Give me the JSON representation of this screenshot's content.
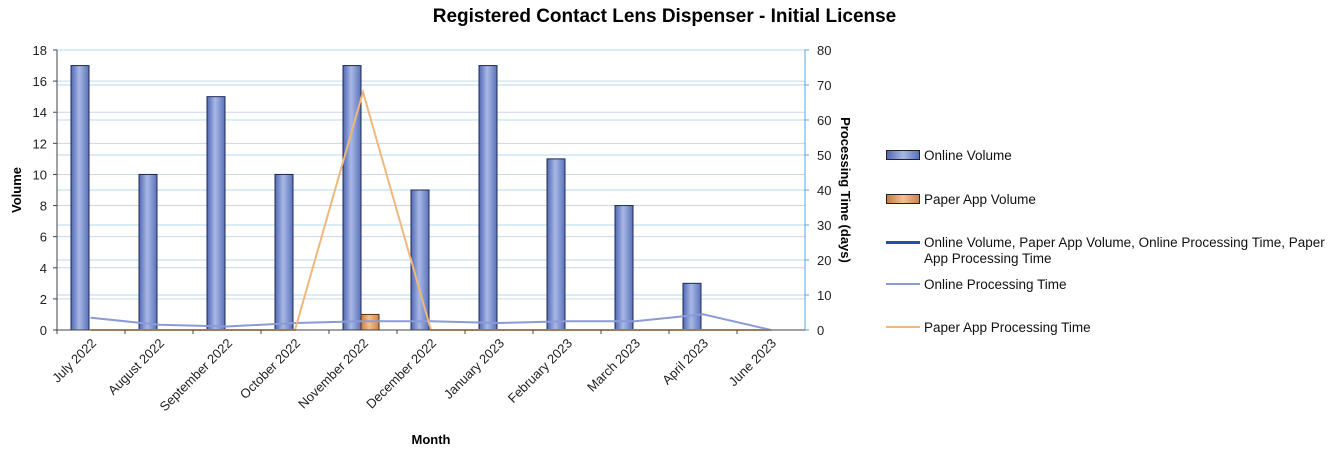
{
  "chart_data": {
    "type": "bar",
    "title": "Registered Contact Lens Dispenser - Initial License",
    "xlabel": "Month",
    "ylabel": "Volume",
    "y2label": "Processing Time  (days)",
    "ylim": [
      0,
      18
    ],
    "y2lim": [
      0,
      80
    ],
    "yticks": [
      0,
      2,
      4,
      6,
      8,
      10,
      12,
      14,
      16,
      18
    ],
    "y2ticks": [
      0,
      10,
      20,
      30,
      40,
      50,
      60,
      70,
      80
    ],
    "grid": true,
    "legend_position": "right",
    "categories": [
      "July 2022",
      "August 2022",
      "September 2022",
      "October 2022",
      "November 2022",
      "December 2022",
      "January 2023",
      "February 2023",
      "March 2023",
      "April 2023",
      "June 2023"
    ],
    "series": [
      {
        "name": "Online Volume",
        "kind": "bar",
        "axis": "left",
        "color": "#6f86c8",
        "values": [
          17,
          10,
          15,
          10,
          17,
          9,
          17,
          11,
          8,
          3,
          0
        ]
      },
      {
        "name": "Paper App Volume",
        "kind": "bar",
        "axis": "left",
        "color": "#e5a065",
        "values": [
          0,
          0,
          0,
          0,
          1,
          0,
          0,
          0,
          0,
          0,
          0
        ]
      },
      {
        "name": "Online Processing Time",
        "kind": "line",
        "axis": "right",
        "color": "#8c9ad6",
        "values": [
          3.5,
          1.5,
          1,
          2,
          2.5,
          2.5,
          2,
          2.5,
          2.5,
          4.5,
          0
        ]
      },
      {
        "name": "Paper App Processing Time",
        "kind": "line",
        "axis": "right",
        "color": "#f0b77a",
        "values": [
          0,
          0,
          0,
          0,
          68,
          0,
          0,
          0,
          0,
          0,
          0
        ]
      }
    ],
    "legend": [
      {
        "label": "Online Volume",
        "swatch": "bar",
        "color": "#6f86c8"
      },
      {
        "label": "Paper App Volume",
        "swatch": "bar",
        "color": "#e5a065"
      },
      {
        "label": "Online Volume, Paper App Volume, Online Processing Time, Paper App Processing Time",
        "swatch": "line",
        "color": "#1f4fa8"
      },
      {
        "label": "Online Processing Time",
        "swatch": "line",
        "color": "#8c9ad6"
      },
      {
        "label": "Paper App Processing Time",
        "swatch": "line",
        "color": "#f0b77a"
      }
    ]
  }
}
